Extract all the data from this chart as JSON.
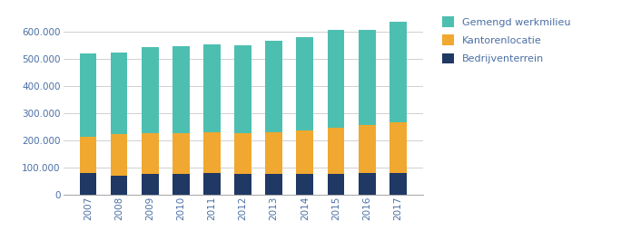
{
  "years": [
    2007,
    2008,
    2009,
    2010,
    2011,
    2012,
    2013,
    2014,
    2015,
    2016,
    2017
  ],
  "bedrijventerrein": [
    80000,
    72000,
    78000,
    78000,
    80000,
    78000,
    78000,
    78000,
    78000,
    80000,
    80000
  ],
  "kantorenlocatie": [
    135000,
    150000,
    148000,
    148000,
    150000,
    150000,
    152000,
    158000,
    168000,
    178000,
    185000
  ],
  "gemengd_werkmilieu": [
    305000,
    302000,
    315000,
    320000,
    322000,
    320000,
    335000,
    342000,
    358000,
    348000,
    370000
  ],
  "color_bedrijventerrein": "#1f3864",
  "color_kantorenlocatie": "#f0a830",
  "color_gemengd": "#4dbfb0",
  "legend_labels": [
    "Gemengd werkmilieu",
    "Kantorenlocatie",
    "Bedrijventerrein"
  ],
  "ylabel_ticks": [
    0,
    100000,
    200000,
    300000,
    400000,
    500000,
    600000
  ],
  "ylabel_labels": [
    "0",
    "100.000",
    "200.000",
    "300.000",
    "400.000",
    "500.000",
    "600.000"
  ],
  "background_color": "#ffffff",
  "grid_color": "#d0d0d0",
  "tick_color": "#4a6fa5",
  "bar_width": 0.55,
  "ylim": [
    0,
    660000
  ],
  "figsize": [
    6.95,
    2.76
  ],
  "dpi": 100
}
